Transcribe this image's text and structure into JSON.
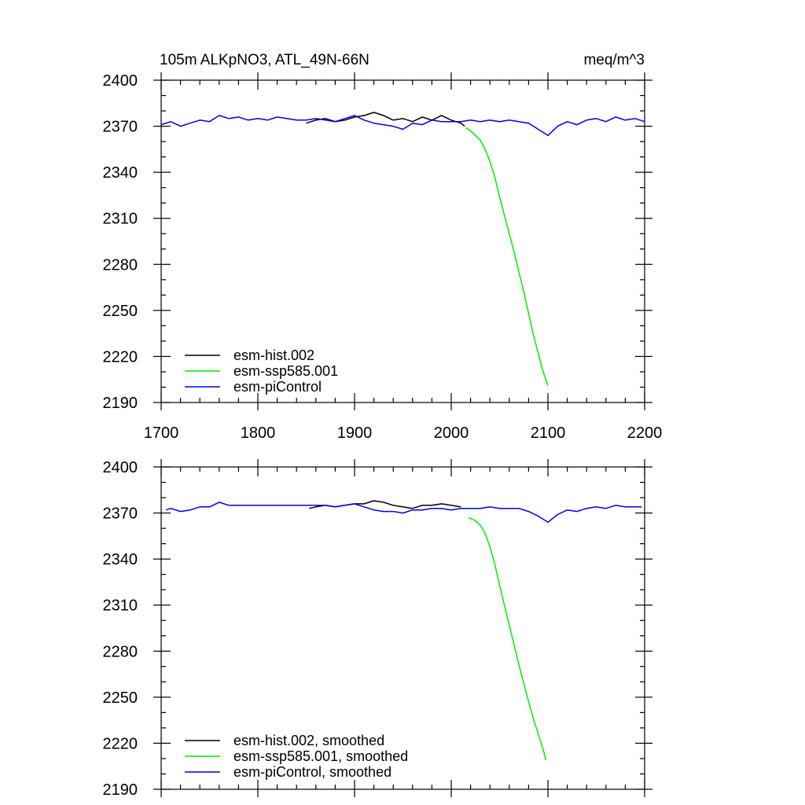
{
  "header": {
    "title": "105m ALKpNO3, ATL_49N-66N",
    "units": "meq/m^3"
  },
  "chart_data": [
    {
      "type": "line",
      "panel": "top",
      "title": "105m ALKpNO3, ATL_49N-66N",
      "units": "meq/m^3",
      "xlim": [
        1700,
        2200
      ],
      "ylim": [
        2190,
        2400
      ],
      "x_ticks": [
        1700,
        1800,
        1900,
        2000,
        2100,
        2200
      ],
      "x_tick_labels": [
        "1700",
        "1800",
        "1900",
        "2000",
        "2100",
        "2200"
      ],
      "y_ticks": [
        2190,
        2220,
        2250,
        2280,
        2310,
        2340,
        2370,
        2400
      ],
      "y_tick_labels": [
        "2190",
        "2220",
        "2250",
        "2280",
        "2310",
        "2340",
        "2370",
        "2400"
      ],
      "legend_position": "bottom-left",
      "series": [
        {
          "name": "esm-hist.002",
          "color": "#000000",
          "x": [
            1850,
            1860,
            1870,
            1880,
            1890,
            1900,
            1910,
            1920,
            1930,
            1940,
            1950,
            1960,
            1970,
            1980,
            1990,
            2000,
            2010,
            2014
          ],
          "y": [
            2372,
            2374,
            2375,
            2373,
            2374,
            2376,
            2377,
            2379,
            2377,
            2374,
            2375,
            2373,
            2376,
            2374,
            2377,
            2374,
            2372,
            2370
          ]
        },
        {
          "name": "esm-ssp585.001",
          "color": "#00ee00",
          "x": [
            2015,
            2020,
            2025,
            2030,
            2035,
            2040,
            2045,
            2050,
            2055,
            2060,
            2065,
            2070,
            2075,
            2080,
            2085,
            2090,
            2095,
            2100
          ],
          "y": [
            2369,
            2367,
            2364,
            2361,
            2355,
            2347,
            2337,
            2324,
            2312,
            2300,
            2288,
            2275,
            2262,
            2248,
            2234,
            2222,
            2210,
            2201
          ]
        },
        {
          "name": "esm-piControl",
          "color": "#0000ee",
          "x": [
            1700,
            1710,
            1720,
            1730,
            1740,
            1750,
            1760,
            1770,
            1780,
            1790,
            1800,
            1810,
            1820,
            1830,
            1840,
            1850,
            1860,
            1870,
            1880,
            1890,
            1900,
            1910,
            1920,
            1930,
            1940,
            1950,
            1960,
            1970,
            1980,
            1990,
            2000,
            2010,
            2020,
            2030,
            2040,
            2050,
            2060,
            2070,
            2080,
            2090,
            2100,
            2110,
            2120,
            2130,
            2140,
            2150,
            2160,
            2170,
            2180,
            2190,
            2200
          ],
          "y": [
            2371,
            2373,
            2370,
            2372,
            2374,
            2373,
            2377,
            2375,
            2376,
            2374,
            2375,
            2374,
            2376,
            2375,
            2374,
            2374,
            2375,
            2374,
            2373,
            2375,
            2377,
            2374,
            2372,
            2371,
            2370,
            2368,
            2372,
            2371,
            2374,
            2373,
            2373,
            2373,
            2374,
            2373,
            2374,
            2373,
            2374,
            2373,
            2372,
            2368,
            2364,
            2370,
            2373,
            2371,
            2374,
            2375,
            2373,
            2376,
            2374,
            2375,
            2373
          ]
        }
      ]
    },
    {
      "type": "line",
      "panel": "bottom",
      "xlim": [
        1700,
        2200
      ],
      "ylim": [
        2190,
        2400
      ],
      "y_ticks": [
        2190,
        2220,
        2250,
        2280,
        2310,
        2340,
        2370,
        2400
      ],
      "y_tick_labels": [
        "2190",
        "2220",
        "2250",
        "2280",
        "2310",
        "2340",
        "2370",
        "2400"
      ],
      "legend_position": "bottom-left",
      "series": [
        {
          "name": "esm-hist.002, smoothed",
          "color": "#000000",
          "x": [
            1853,
            1860,
            1870,
            1880,
            1890,
            1900,
            1910,
            1920,
            1930,
            1940,
            1950,
            1960,
            1970,
            1980,
            1990,
            2000,
            2010
          ],
          "y": [
            2373,
            2374,
            2375,
            2374,
            2375,
            2376,
            2376,
            2378,
            2377,
            2375,
            2374,
            2373,
            2375,
            2375,
            2376,
            2375,
            2374
          ]
        },
        {
          "name": "esm-ssp585.001, smoothed",
          "color": "#00ee00",
          "x": [
            2018,
            2025,
            2030,
            2035,
            2040,
            2045,
            2050,
            2055,
            2060,
            2065,
            2070,
            2075,
            2080,
            2085,
            2090,
            2095,
            2098
          ],
          "y": [
            2367,
            2365,
            2362,
            2357,
            2348,
            2337,
            2323,
            2310,
            2297,
            2284,
            2271,
            2259,
            2247,
            2236,
            2226,
            2216,
            2209
          ]
        },
        {
          "name": "esm-piControl, smoothed",
          "color": "#0000ee",
          "x": [
            1705,
            1710,
            1720,
            1730,
            1740,
            1750,
            1760,
            1770,
            1780,
            1790,
            1800,
            1810,
            1820,
            1830,
            1840,
            1850,
            1860,
            1870,
            1880,
            1890,
            1900,
            1910,
            1920,
            1930,
            1940,
            1950,
            1960,
            1970,
            1980,
            1990,
            2000,
            2010,
            2020,
            2030,
            2040,
            2050,
            2060,
            2070,
            2080,
            2090,
            2100,
            2110,
            2120,
            2130,
            2140,
            2150,
            2160,
            2170,
            2180,
            2190,
            2197
          ],
          "y": [
            2372,
            2373,
            2371,
            2372,
            2374,
            2374,
            2377,
            2375,
            2375,
            2375,
            2375,
            2375,
            2375,
            2375,
            2375,
            2375,
            2375,
            2375,
            2374,
            2375,
            2376,
            2374,
            2372,
            2371,
            2371,
            2370,
            2372,
            2372,
            2373,
            2373,
            2372,
            2373,
            2373,
            2373,
            2374,
            2373,
            2373,
            2373,
            2371,
            2368,
            2364,
            2369,
            2372,
            2371,
            2373,
            2374,
            2373,
            2375,
            2374,
            2374,
            2374
          ]
        }
      ]
    }
  ]
}
